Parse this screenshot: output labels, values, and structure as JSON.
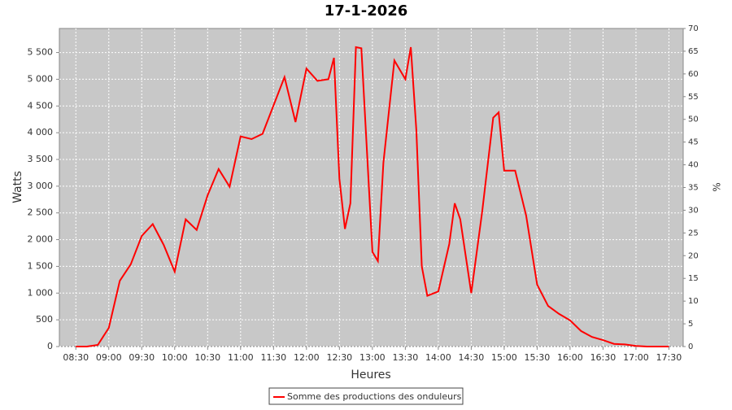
{
  "chart_data": {
    "type": "line",
    "title": "17-1-2026",
    "xlabel": "Heures",
    "ylabel": "Watts",
    "y2label": "%",
    "x": [
      "08:30",
      "08:40",
      "08:50",
      "09:00",
      "09:10",
      "09:20",
      "09:30",
      "09:40",
      "09:50",
      "10:00",
      "10:10",
      "10:20",
      "10:30",
      "10:40",
      "10:50",
      "11:00",
      "11:10",
      "11:20",
      "11:30",
      "11:40",
      "11:50",
      "12:00",
      "12:10",
      "12:20",
      "12:25",
      "12:30",
      "12:35",
      "12:40",
      "12:45",
      "12:50",
      "13:00",
      "13:05",
      "13:10",
      "13:20",
      "13:30",
      "13:35",
      "13:40",
      "13:45",
      "13:50",
      "14:00",
      "14:10",
      "14:15",
      "14:20",
      "14:30",
      "14:40",
      "14:50",
      "14:55",
      "15:00",
      "15:10",
      "15:20",
      "15:30",
      "15:40",
      "15:50",
      "16:00",
      "16:10",
      "16:20",
      "16:30",
      "16:40",
      "16:50",
      "17:00",
      "17:10",
      "17:20",
      "17:30"
    ],
    "series": [
      {
        "name": "Somme des productions des onduleurs",
        "color": "#ff0000",
        "values": [
          0,
          0,
          30,
          350,
          1230,
          1540,
          2070,
          2290,
          1900,
          1400,
          2380,
          2180,
          2830,
          3320,
          2990,
          3930,
          3880,
          3980,
          4510,
          5040,
          4200,
          5200,
          4970,
          5000,
          5400,
          3140,
          2200,
          2680,
          5600,
          5580,
          1770,
          1600,
          3440,
          5350,
          5000,
          5600,
          4050,
          1500,
          950,
          1030,
          1920,
          2680,
          2380,
          1000,
          2530,
          4280,
          4380,
          3290,
          3290,
          2450,
          1160,
          760,
          610,
          490,
          290,
          180,
          120,
          50,
          40,
          10,
          0,
          0,
          0
        ]
      }
    ],
    "xlim": [
      "08:15",
      "17:43"
    ],
    "xticks": [
      "08:30",
      "09:00",
      "09:30",
      "10:00",
      "10:30",
      "11:00",
      "11:30",
      "12:00",
      "12:30",
      "13:00",
      "13:30",
      "14:00",
      "14:30",
      "15:00",
      "15:30",
      "16:00",
      "16:30",
      "17:00",
      "17:30"
    ],
    "ylim": [
      0,
      5950
    ],
    "yticks": [
      0,
      500,
      {
        "value": 1000,
        "label": "1 000"
      },
      {
        "value": 1500,
        "label": "1 500"
      },
      {
        "value": 2000,
        "label": "2 000"
      },
      {
        "value": 2500,
        "label": "2 500"
      },
      {
        "value": 3000,
        "label": "3 000"
      },
      {
        "value": 3500,
        "label": "3 500"
      },
      {
        "value": 4000,
        "label": "4 000"
      },
      {
        "value": 4500,
        "label": "4 500"
      },
      {
        "value": 5000,
        "label": "5 000"
      },
      {
        "value": 5500,
        "label": "5 500"
      }
    ],
    "y2lim": [
      0,
      70
    ],
    "y2ticks": [
      0,
      5,
      10,
      15,
      20,
      25,
      30,
      35,
      40,
      45,
      50,
      55,
      60,
      65,
      70
    ],
    "grid": true,
    "legend": "bottom"
  }
}
